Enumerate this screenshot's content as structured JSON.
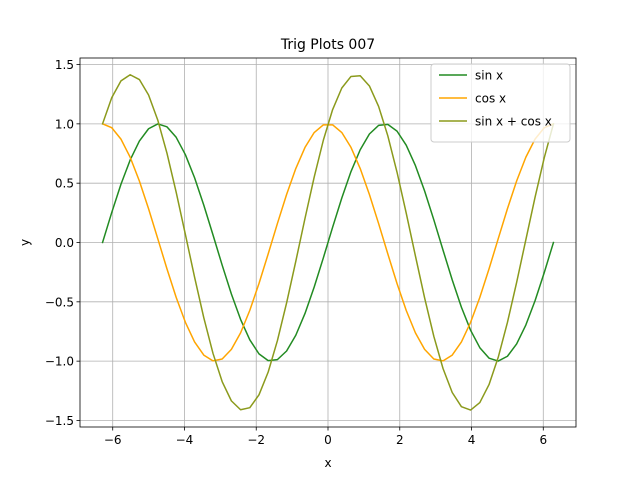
{
  "chart_data": {
    "type": "line",
    "title": "Trig Plots 007",
    "xlabel": "x",
    "ylabel": "y",
    "xlim": [
      -6.912,
      6.912
    ],
    "ylim": [
      -1.555,
      1.555
    ],
    "xticks": [
      -6,
      -4,
      -2,
      0,
      2,
      4,
      6
    ],
    "xtick_labels": [
      "−6",
      "−4",
      "−2",
      "0",
      "2",
      "4",
      "6"
    ],
    "yticks": [
      -1.5,
      -1.0,
      -0.5,
      0.0,
      0.5,
      1.0,
      1.5
    ],
    "ytick_labels": [
      "−1.5",
      "−1.0",
      "−0.5",
      "0.0",
      "0.5",
      "1.0",
      "1.5"
    ],
    "grid": true,
    "legend_position": "upper-right",
    "x_range": [
      -6.2832,
      6.2832
    ],
    "num_points": 50,
    "series": [
      {
        "name": "sin x",
        "function": "sin",
        "color": "#228b22"
      },
      {
        "name": "cos x",
        "function": "cos",
        "color": "#ffa500"
      },
      {
        "name": "sin x + cos x",
        "function": "sin+cos",
        "color": "#8b9a1c"
      }
    ]
  }
}
